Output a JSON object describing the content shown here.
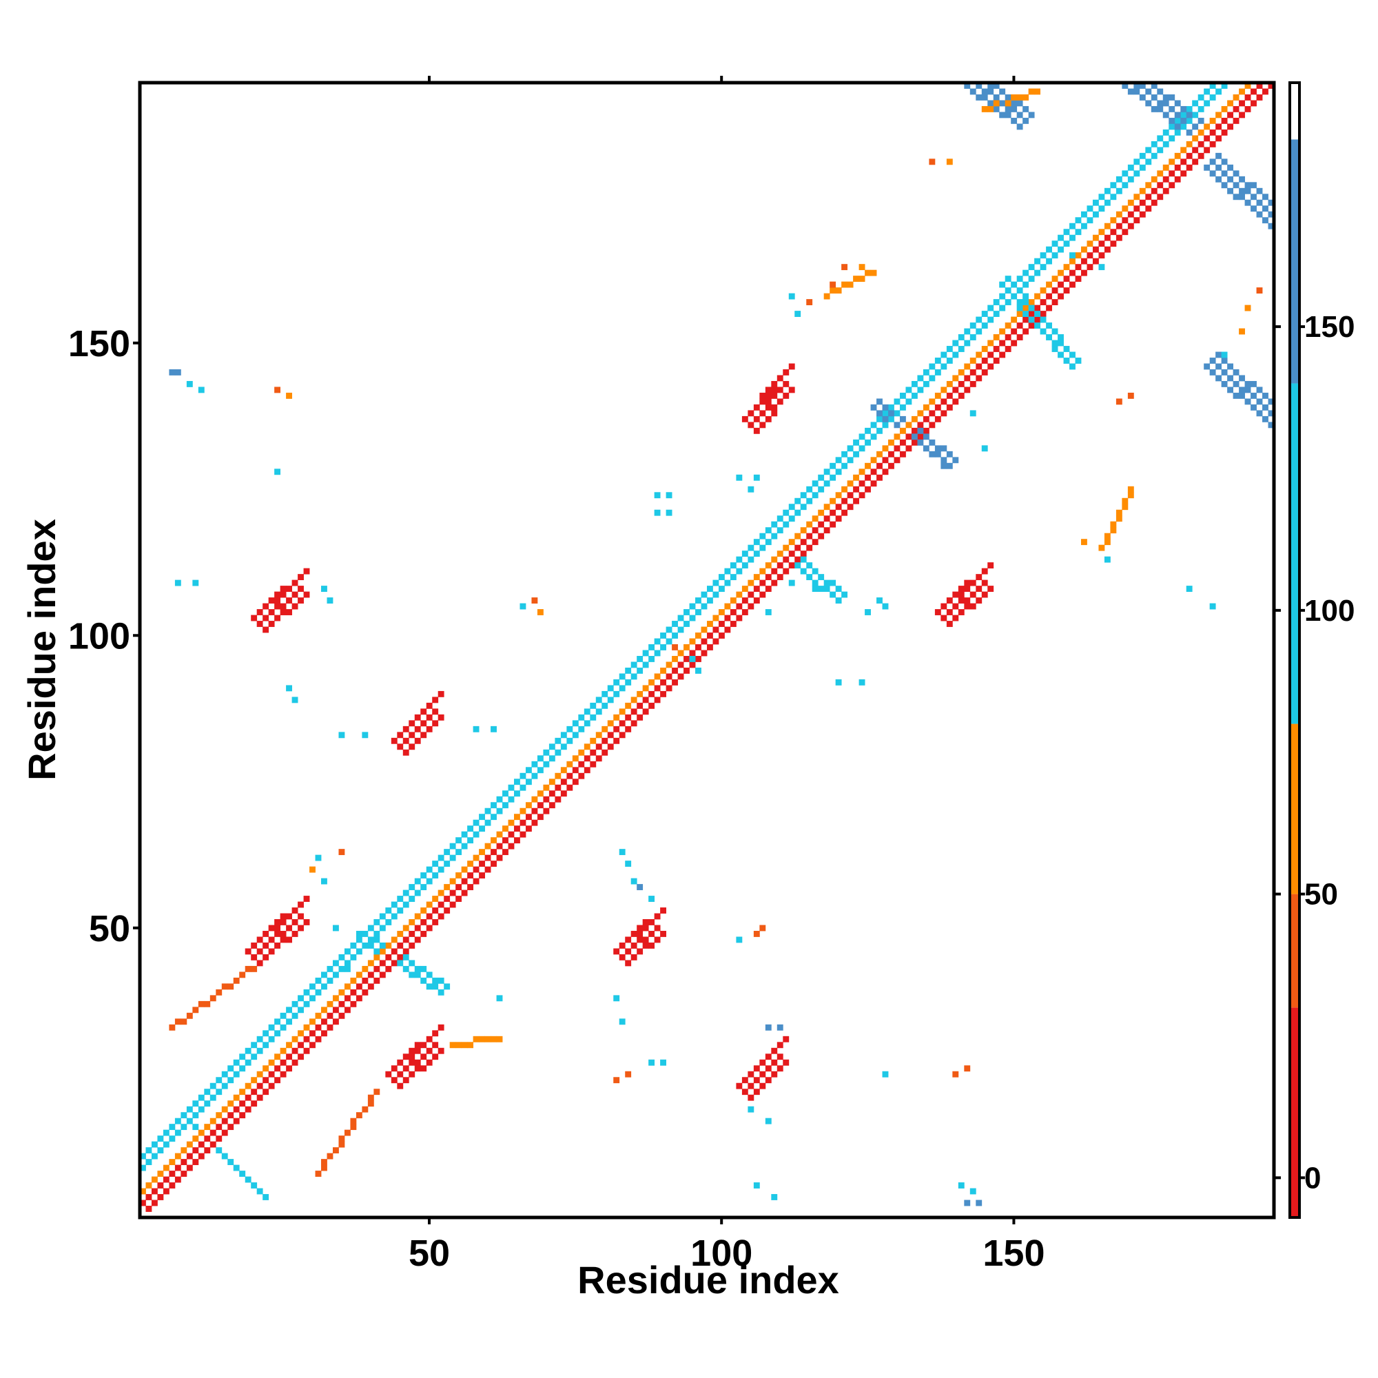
{
  "chart_data": {
    "type": "heatmap",
    "title": "",
    "xlabel": "Residue index",
    "ylabel": "Residue index",
    "xlim": [
      1,
      194
    ],
    "ylim": [
      1,
      194
    ],
    "x_ticks": [
      50,
      100,
      150
    ],
    "y_ticks": [
      50,
      100,
      150
    ],
    "colorbar": {
      "ticks": [
        0,
        50,
        100,
        150
      ],
      "range": [
        -7,
        193
      ],
      "bands": [
        {
          "from": -7,
          "to": 30,
          "color": "#e41a1c"
        },
        {
          "from": 30,
          "to": 50,
          "color": "#f05a14"
        },
        {
          "from": 50,
          "to": 80,
          "color": "#ff8c00"
        },
        {
          "from": 80,
          "to": 140,
          "color": "#1ec8e6"
        },
        {
          "from": 140,
          "to": 183,
          "color": "#4a8ec8"
        },
        {
          "from": 183,
          "to": 193,
          "color": "#ffffff"
        }
      ]
    },
    "strips": [
      {
        "x0": 1,
        "y0": 1,
        "x1": 194,
        "y1": 194,
        "offset": 1,
        "width": 1,
        "value": 10
      },
      {
        "x0": 1,
        "y0": 1,
        "x1": 194,
        "y1": 194,
        "offset": 2,
        "width": 1,
        "value": 60
      },
      {
        "x0": 1,
        "y0": 1,
        "x1": 194,
        "y1": 194,
        "offset": 4,
        "width": 2,
        "value": 95
      },
      {
        "x0": 8,
        "y0": 18,
        "x1": 22,
        "y1": 4,
        "offset": 0,
        "width": 1,
        "value": 120
      },
      {
        "x0": 40,
        "y0": 47,
        "x1": 52,
        "y1": 39,
        "offset": 0,
        "width": 2,
        "value": 110
      },
      {
        "x0": 110,
        "y0": 114,
        "x1": 120,
        "y1": 106,
        "offset": 0,
        "width": 2,
        "value": 110
      },
      {
        "x0": 126,
        "y0": 139,
        "x1": 139,
        "y1": 129,
        "offset": 0,
        "width": 2,
        "value": 150
      },
      {
        "x0": 148,
        "y0": 160,
        "x1": 160,
        "y1": 146,
        "offset": 0,
        "width": 2,
        "value": 110
      },
      {
        "x0": 142,
        "y0": 194,
        "x1": 151,
        "y1": 187,
        "offset": 0,
        "width": 3,
        "value": 160
      },
      {
        "x0": 169,
        "y0": 194,
        "x1": 181,
        "y1": 185,
        "offset": 0,
        "width": 3,
        "value": 160
      },
      {
        "x0": 183,
        "y0": 180,
        "x1": 194,
        "y1": 170,
        "offset": 0,
        "width": 3,
        "value": 160
      },
      {
        "x0": 183,
        "y0": 146,
        "x1": 194,
        "y1": 136,
        "offset": 0,
        "width": 3,
        "value": 160
      },
      {
        "x0": 19,
        "y0": 46,
        "x1": 27,
        "y1": 53,
        "offset": 0,
        "width": 3,
        "value": 10
      },
      {
        "x0": 43,
        "y0": 25,
        "x1": 50,
        "y1": 31,
        "offset": 0,
        "width": 3,
        "value": 10
      },
      {
        "x0": 44,
        "y0": 82,
        "x1": 50,
        "y1": 88,
        "offset": 0,
        "width": 3,
        "value": 10
      },
      {
        "x0": 20,
        "y0": 103,
        "x1": 27,
        "y1": 109,
        "offset": 0,
        "width": 3,
        "value": 10
      },
      {
        "x0": 82,
        "y0": 46,
        "x1": 88,
        "y1": 51,
        "offset": 0,
        "width": 3,
        "value": 10
      },
      {
        "x0": 103,
        "y0": 23,
        "x1": 109,
        "y1": 29,
        "offset": 0,
        "width": 3,
        "value": 10
      },
      {
        "x0": 104,
        "y0": 137,
        "x1": 110,
        "y1": 144,
        "offset": 0,
        "width": 3,
        "value": 10
      },
      {
        "x0": 137,
        "y0": 104,
        "x1": 144,
        "y1": 110,
        "offset": 0,
        "width": 3,
        "value": 10
      },
      {
        "x0": 6,
        "y0": 33,
        "x1": 21,
        "y1": 44,
        "offset": 0,
        "width": 1,
        "value": 40
      },
      {
        "x0": 31,
        "y0": 8,
        "x1": 41,
        "y1": 22,
        "offset": 0,
        "width": 1,
        "value": 40
      },
      {
        "x0": 54,
        "y0": 30,
        "x1": 62,
        "y1": 31,
        "offset": 0,
        "width": 1,
        "value": 60
      },
      {
        "x0": 165,
        "y0": 115,
        "x1": 170,
        "y1": 125,
        "offset": 0,
        "width": 1,
        "value": 60
      },
      {
        "x0": 145,
        "y0": 190,
        "x1": 154,
        "y1": 193,
        "offset": 0,
        "width": 1,
        "value": 60
      },
      {
        "x0": 118,
        "y0": 158,
        "x1": 126,
        "y1": 162,
        "offset": 0,
        "width": 1,
        "value": 60
      }
    ],
    "dots": [
      [
        7,
        145,
        160
      ],
      [
        6,
        145,
        160
      ],
      [
        9,
        143,
        100
      ],
      [
        11,
        142,
        100
      ],
      [
        7,
        109,
        100
      ],
      [
        10,
        109,
        100
      ],
      [
        32,
        108,
        100
      ],
      [
        33,
        106,
        100
      ],
      [
        26,
        91,
        100
      ],
      [
        27,
        89,
        100
      ],
      [
        35,
        83,
        100
      ],
      [
        39,
        83,
        100
      ],
      [
        58,
        84,
        100
      ],
      [
        61,
        84,
        100
      ],
      [
        31,
        62,
        100
      ],
      [
        35,
        63,
        40
      ],
      [
        30,
        60,
        60
      ],
      [
        32,
        58,
        100
      ],
      [
        34,
        50,
        100
      ],
      [
        38,
        49,
        100
      ],
      [
        40,
        42,
        100
      ],
      [
        36,
        43,
        100
      ],
      [
        24,
        142,
        40
      ],
      [
        26,
        141,
        60
      ],
      [
        24,
        128,
        100
      ],
      [
        68,
        106,
        40
      ],
      [
        69,
        104,
        60
      ],
      [
        66,
        105,
        100
      ],
      [
        83,
        63,
        100
      ],
      [
        84,
        61,
        100
      ],
      [
        85,
        58,
        100
      ],
      [
        88,
        55,
        100
      ],
      [
        86,
        57,
        150
      ],
      [
        83,
        34,
        100
      ],
      [
        82,
        38,
        100
      ],
      [
        62,
        38,
        100
      ],
      [
        88,
        27,
        100
      ],
      [
        90,
        27,
        100
      ],
      [
        82,
        24,
        40
      ],
      [
        84,
        25,
        40
      ],
      [
        103,
        48,
        100
      ],
      [
        106,
        49,
        40
      ],
      [
        107,
        50,
        40
      ],
      [
        108,
        33,
        150
      ],
      [
        110,
        33,
        150
      ],
      [
        105,
        19,
        100
      ],
      [
        108,
        17,
        100
      ],
      [
        106,
        6,
        100
      ],
      [
        109,
        4,
        100
      ],
      [
        141,
        6,
        100
      ],
      [
        143,
        5,
        100
      ],
      [
        142,
        3,
        150
      ],
      [
        144,
        3,
        150
      ],
      [
        128,
        25,
        100
      ],
      [
        140,
        25,
        40
      ],
      [
        142,
        26,
        40
      ],
      [
        103,
        127,
        100
      ],
      [
        106,
        127,
        100
      ],
      [
        105,
        125,
        100
      ],
      [
        89,
        124,
        100
      ],
      [
        91,
        124,
        100
      ],
      [
        89,
        121,
        100
      ],
      [
        91,
        121,
        100
      ],
      [
        120,
        92,
        100
      ],
      [
        124,
        92,
        100
      ],
      [
        125,
        104,
        100
      ],
      [
        127,
        106,
        100
      ],
      [
        128,
        105,
        100
      ],
      [
        108,
        104,
        100
      ],
      [
        112,
        109,
        100
      ],
      [
        116,
        108,
        100
      ],
      [
        136,
        181,
        40
      ],
      [
        139,
        181,
        60
      ],
      [
        145,
        132,
        100
      ],
      [
        138,
        129,
        150
      ],
      [
        121,
        163,
        40
      ],
      [
        124,
        163,
        60
      ],
      [
        119,
        160,
        40
      ],
      [
        112,
        158,
        100
      ],
      [
        113,
        155,
        100
      ],
      [
        115,
        157,
        40
      ],
      [
        143,
        138,
        100
      ],
      [
        168,
        140,
        40
      ],
      [
        170,
        141,
        40
      ],
      [
        166,
        113,
        100
      ],
      [
        162,
        116,
        60
      ],
      [
        180,
        108,
        100
      ],
      [
        184,
        105,
        100
      ],
      [
        192,
        159,
        40
      ],
      [
        190,
        156,
        60
      ],
      [
        189,
        152,
        60
      ],
      [
        186,
        148,
        100
      ],
      [
        163,
        165,
        100
      ],
      [
        165,
        163,
        100
      ],
      [
        160,
        165,
        100
      ],
      [
        95,
        96,
        100
      ],
      [
        96,
        94,
        100
      ],
      [
        92,
        98,
        40
      ]
    ]
  }
}
